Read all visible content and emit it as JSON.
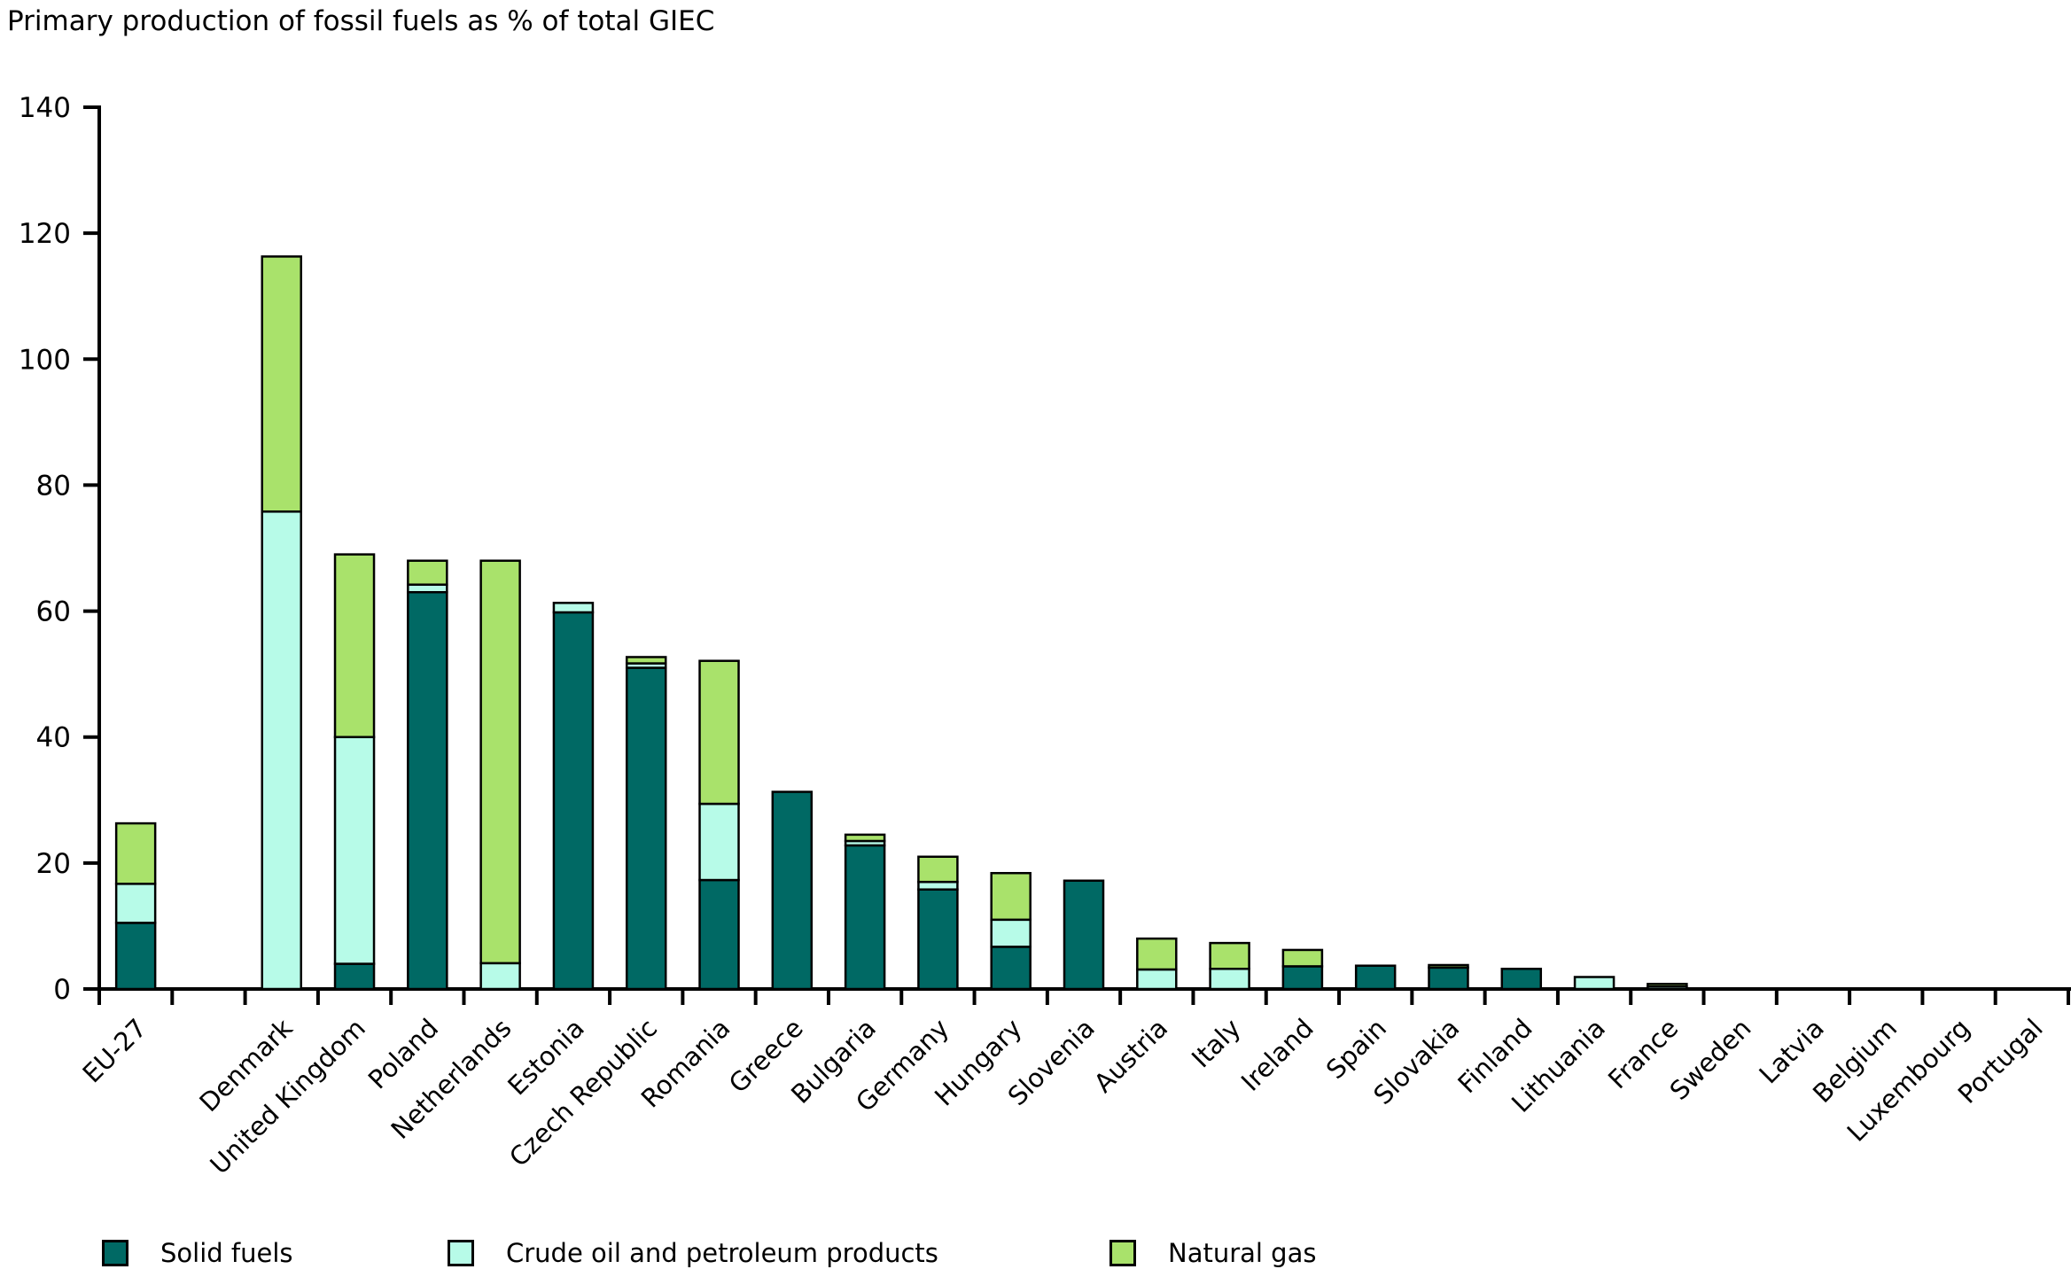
{
  "title": "Primary production of fossil fuels as % of total GIEC",
  "chart_data": {
    "type": "bar",
    "stacked": true,
    "title": "Primary production of fossil fuels as % of total GIEC",
    "xlabel": "",
    "ylabel": "",
    "ylim": [
      0,
      140
    ],
    "yticks": [
      0,
      20,
      40,
      60,
      80,
      100,
      120,
      140
    ],
    "grid": false,
    "legend_position": "bottom",
    "gap_after_index": 0,
    "categories": [
      "EU-27",
      "Denmark",
      "United Kingdom",
      "Poland",
      "Netherlands",
      "Estonia",
      "Czech Republic",
      "Romania",
      "Greece",
      "Bulgaria",
      "Germany",
      "Hungary",
      "Slovenia",
      "Austria",
      "Italy",
      "Ireland",
      "Spain",
      "Slovakia",
      "Finland",
      "Lithuania",
      "France",
      "Sweden",
      "Latvia",
      "Belgium",
      "Luxembourg",
      "Portugal"
    ],
    "series": [
      {
        "name": "Solid fuels",
        "color": "#006964",
        "values": [
          10.5,
          0,
          4.0,
          63.0,
          0,
          59.8,
          51.0,
          17.3,
          31.3,
          22.8,
          15.8,
          6.7,
          17.2,
          0,
          0,
          3.6,
          3.7,
          3.4,
          3.2,
          0,
          0,
          0,
          0,
          0,
          0,
          0
        ]
      },
      {
        "name": "Crude oil and petroleum products",
        "color": "#b7fbe8",
        "values": [
          6.2,
          75.8,
          36.0,
          1.2,
          4.1,
          1.5,
          0.7,
          12.1,
          0,
          0.7,
          1.2,
          4.3,
          0,
          3.1,
          3.2,
          0,
          0,
          0,
          0,
          1.9,
          0.4,
          0,
          0,
          0,
          0,
          0
        ]
      },
      {
        "name": "Natural gas",
        "color": "#a9e26b",
        "values": [
          9.6,
          40.5,
          29.0,
          3.8,
          63.9,
          0,
          1.0,
          22.7,
          0,
          1.0,
          4.0,
          7.4,
          0,
          4.9,
          4.1,
          2.6,
          0,
          0.4,
          0,
          0,
          0.4,
          0,
          0,
          0,
          0,
          0
        ]
      }
    ],
    "legend_labels": [
      "Solid fuels",
      "Crude oil and petroleum products",
      "Natural gas"
    ]
  }
}
